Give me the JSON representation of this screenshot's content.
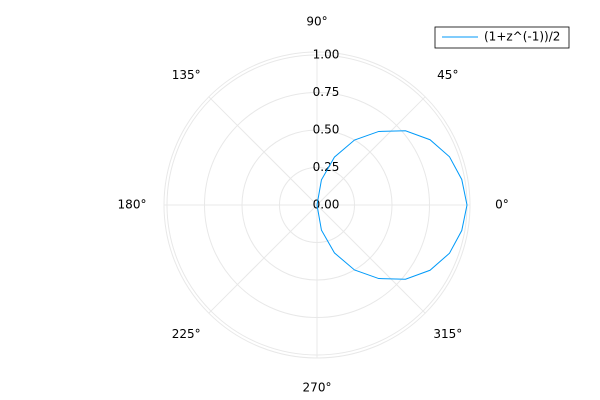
{
  "chart_data": {
    "type": "polar-line",
    "series": [
      {
        "name": "(1+z^(-1))/2",
        "color": "#009af9",
        "theta": [
          -90,
          -80,
          -70,
          -60,
          -50,
          -40,
          -30,
          -20,
          -10,
          0,
          10,
          20,
          30,
          40,
          50,
          60,
          70,
          80,
          90
        ],
        "values": [
          0,
          0.17,
          0.34,
          0.5,
          0.64,
          0.77,
          0.87,
          0.94,
          0.98,
          1,
          0.98,
          0.94,
          0.87,
          0.77,
          0.64,
          0.5,
          0.34,
          0.17,
          0
        ]
      }
    ],
    "rlim": [
      0,
      1.02
    ],
    "rticks": [
      {
        "value": 0,
        "label": "0.00"
      },
      {
        "value": 0.25,
        "label": "0.25"
      },
      {
        "value": 0.5,
        "label": "0.50"
      },
      {
        "value": 0.75,
        "label": "0.75"
      },
      {
        "value": 1,
        "label": "1.00"
      }
    ],
    "thetaticks": [
      {
        "value": 0,
        "label": "0°"
      },
      {
        "value": 45,
        "label": "45°"
      },
      {
        "value": 90,
        "label": "90°"
      },
      {
        "value": 135,
        "label": "135°"
      },
      {
        "value": 180,
        "label": "180°"
      },
      {
        "value": 225,
        "label": "225°"
      },
      {
        "value": 270,
        "label": "270°"
      },
      {
        "value": 315,
        "label": "315°"
      }
    ],
    "grid": true,
    "legend": "top-right"
  }
}
